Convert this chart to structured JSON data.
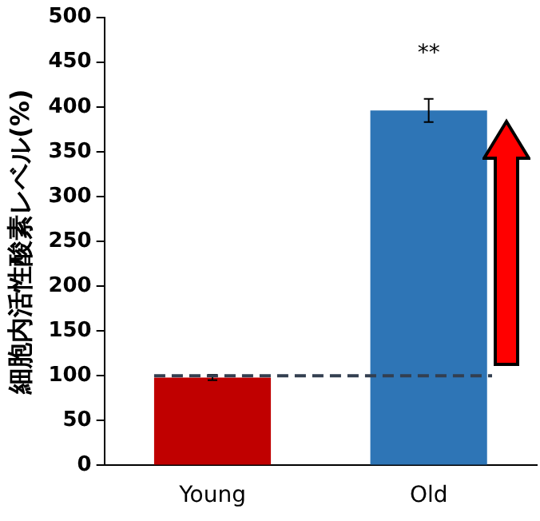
{
  "chart_data": {
    "type": "bar",
    "ylabel": "細胞内活性酸素レベル(%)",
    "categories": [
      "Young",
      "Old"
    ],
    "values": [
      98,
      396
    ],
    "colors": [
      "#c00000",
      "#2e75b6"
    ],
    "errors": [
      3,
      13
    ],
    "ylim": [
      0,
      500
    ],
    "yticks": [
      0,
      50,
      100,
      150,
      200,
      250,
      300,
      350,
      400,
      450,
      500
    ],
    "grid": false,
    "legend": false,
    "ref_lines": [
      {
        "axis": "y",
        "value": 100,
        "color": "#333f50",
        "line_style": "dashed"
      }
    ],
    "annotations": [
      "**"
    ]
  }
}
